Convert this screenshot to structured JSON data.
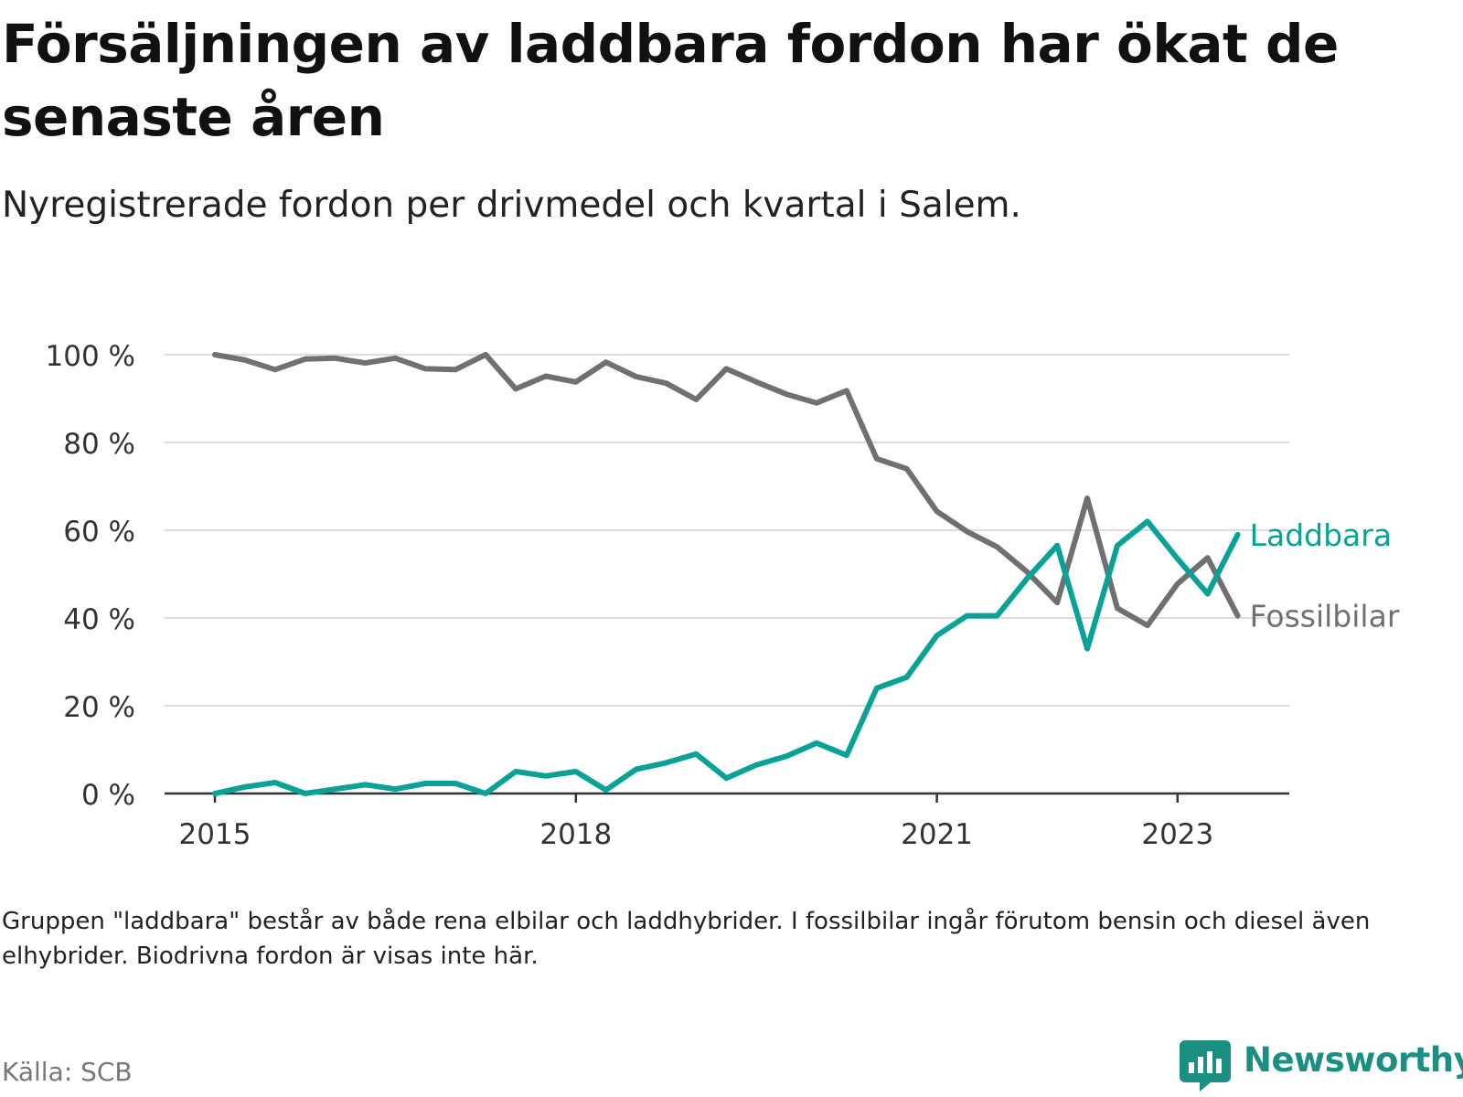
{
  "header": {
    "title": "Försäljningen av laddbara fordon har ökat de senaste åren",
    "subtitle": "Nyregistrerade fordon per drivmedel och kvartal i Salem."
  },
  "footer": {
    "note": "Gruppen \"laddbara\" består av både rena elbilar och laddhybrider. I fossilbilar ingår förutom bensin och diesel även elhybrider. Biodrivna fordon är visas inte här.",
    "source": "Källa: SCB",
    "brand": "Newsworthy"
  },
  "colors": {
    "laddbara": "#0aa196",
    "fossil": "#707074",
    "grid": "#dddddd",
    "axis": "#333333",
    "brand": "#1a8f82"
  },
  "chart_data": {
    "type": "line",
    "title": "Försäljningen av laddbara fordon har ökat de senaste åren",
    "xlabel": "",
    "ylabel": "",
    "ylim": [
      0,
      100
    ],
    "yticks": [
      0,
      20,
      40,
      60,
      80,
      100
    ],
    "ytick_labels": [
      "0 %",
      "20 %",
      "40 %",
      "60 %",
      "80 %",
      "100 %"
    ],
    "xticks": [
      {
        "index": 0,
        "label": "2015"
      },
      {
        "index": 12,
        "label": "2018"
      },
      {
        "index": 24,
        "label": "2021"
      },
      {
        "index": 32,
        "label": "2023"
      }
    ],
    "x": [
      "2015 Q1",
      "2015 Q2",
      "2015 Q3",
      "2015 Q4",
      "2016 Q1",
      "2016 Q2",
      "2016 Q3",
      "2016 Q4",
      "2017 Q1",
      "2017 Q2",
      "2017 Q3",
      "2017 Q4",
      "2018 Q1",
      "2018 Q2",
      "2018 Q3",
      "2018 Q4",
      "2019 Q1",
      "2019 Q2",
      "2019 Q3",
      "2019 Q4",
      "2020 Q1",
      "2020 Q2",
      "2020 Q3",
      "2020 Q4",
      "2021 Q1",
      "2021 Q2",
      "2021 Q3",
      "2021 Q4",
      "2022 Q1",
      "2022 Q2",
      "2022 Q3",
      "2022 Q4",
      "2023 Q1",
      "2023 Q2",
      "2023 Q3"
    ],
    "series": [
      {
        "name": "Laddbara",
        "color": "#0aa196",
        "values": [
          0,
          1.5,
          2.5,
          0,
          1,
          2,
          1,
          2.3,
          2.3,
          0,
          5,
          4,
          5,
          0.8,
          5.5,
          7,
          9,
          3.5,
          6.5,
          8.5,
          11.5,
          8.7,
          24,
          26.5,
          36,
          40.5,
          40.5,
          49,
          56.5,
          33,
          56.5,
          62,
          53.5,
          45.5,
          59
        ]
      },
      {
        "name": "Fossilbilar",
        "color": "#707074",
        "values": [
          100,
          98.8,
          96.6,
          99,
          99.2,
          98.1,
          99.2,
          96.8,
          96.6,
          100,
          92.2,
          95.1,
          93.8,
          98.3,
          95,
          93.5,
          89.8,
          96.8,
          93.8,
          91,
          89,
          91.8,
          76.3,
          74,
          64.3,
          59.7,
          56.2,
          50.5,
          43.5,
          67.3,
          42.2,
          38.3,
          47.8,
          53.7,
          40.5
        ]
      }
    ]
  }
}
